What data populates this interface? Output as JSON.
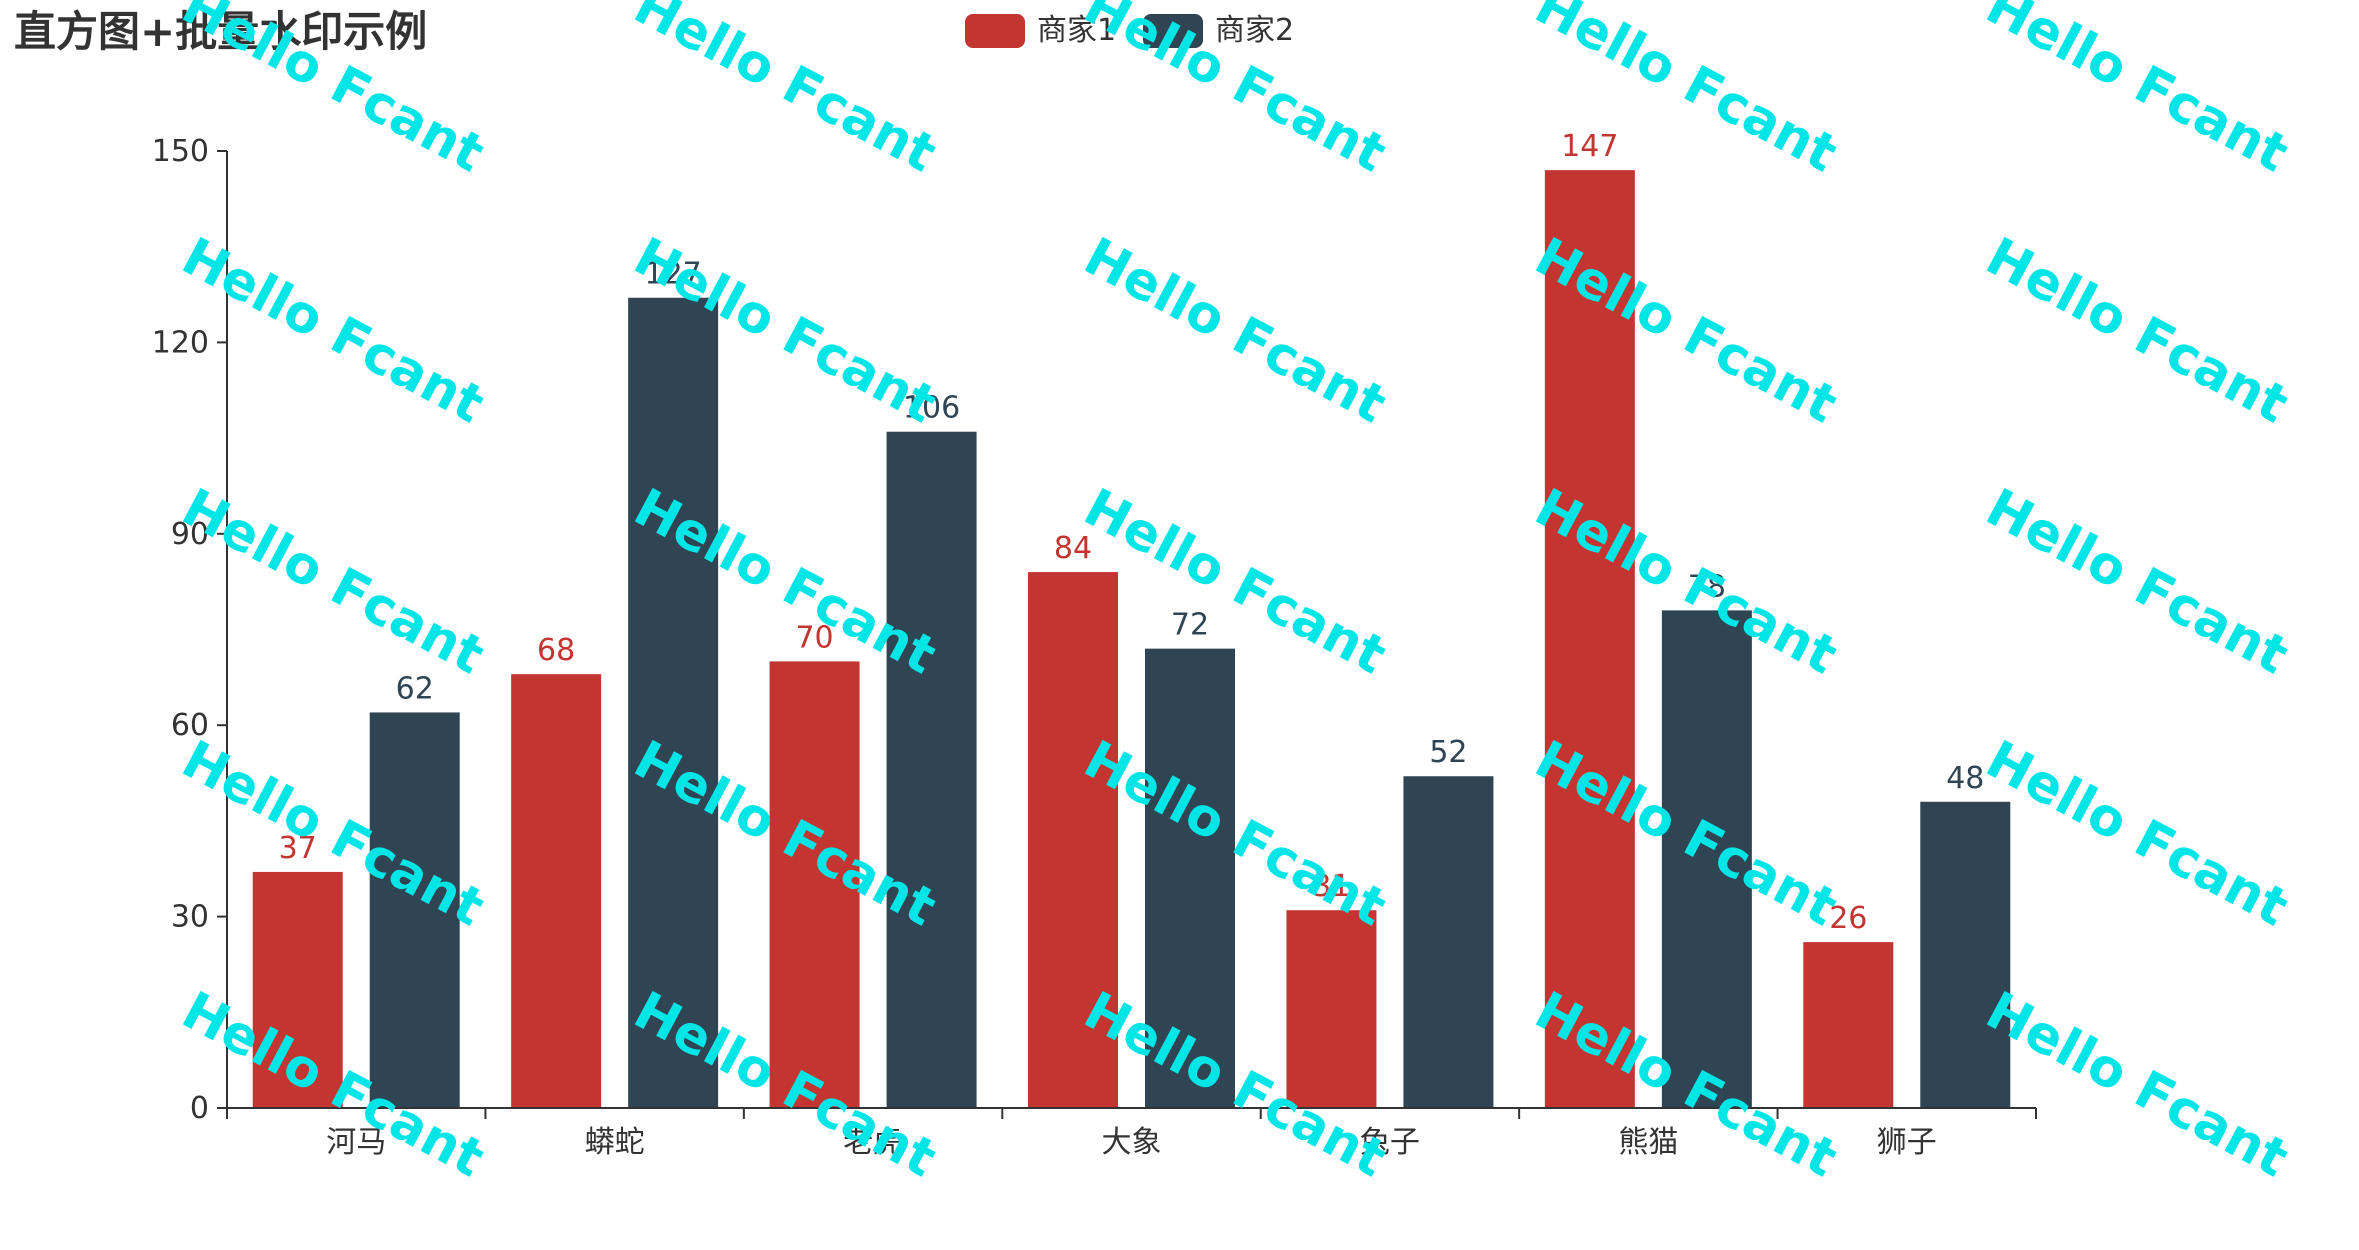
{
  "chart_data": {
    "type": "bar",
    "title": "直方图+批量水印示例",
    "categories": [
      "河马",
      "蟒蛇",
      "老虎",
      "大象",
      "兔子",
      "熊猫",
      "狮子"
    ],
    "series": [
      {
        "name": "商家1",
        "values": [
          37,
          68,
          70,
          84,
          31,
          147,
          26
        ],
        "color": "#c23531"
      },
      {
        "name": "商家2",
        "values": [
          62,
          127,
          106,
          72,
          52,
          78,
          48
        ],
        "color": "#2f4554"
      }
    ],
    "yticks": [
      0,
      30,
      60,
      90,
      120,
      150
    ],
    "ylim": [
      0,
      150
    ],
    "legend_position": "top-center",
    "grid": false,
    "watermark": {
      "text": "Hello Fcant",
      "color": "#00e5e5"
    }
  }
}
